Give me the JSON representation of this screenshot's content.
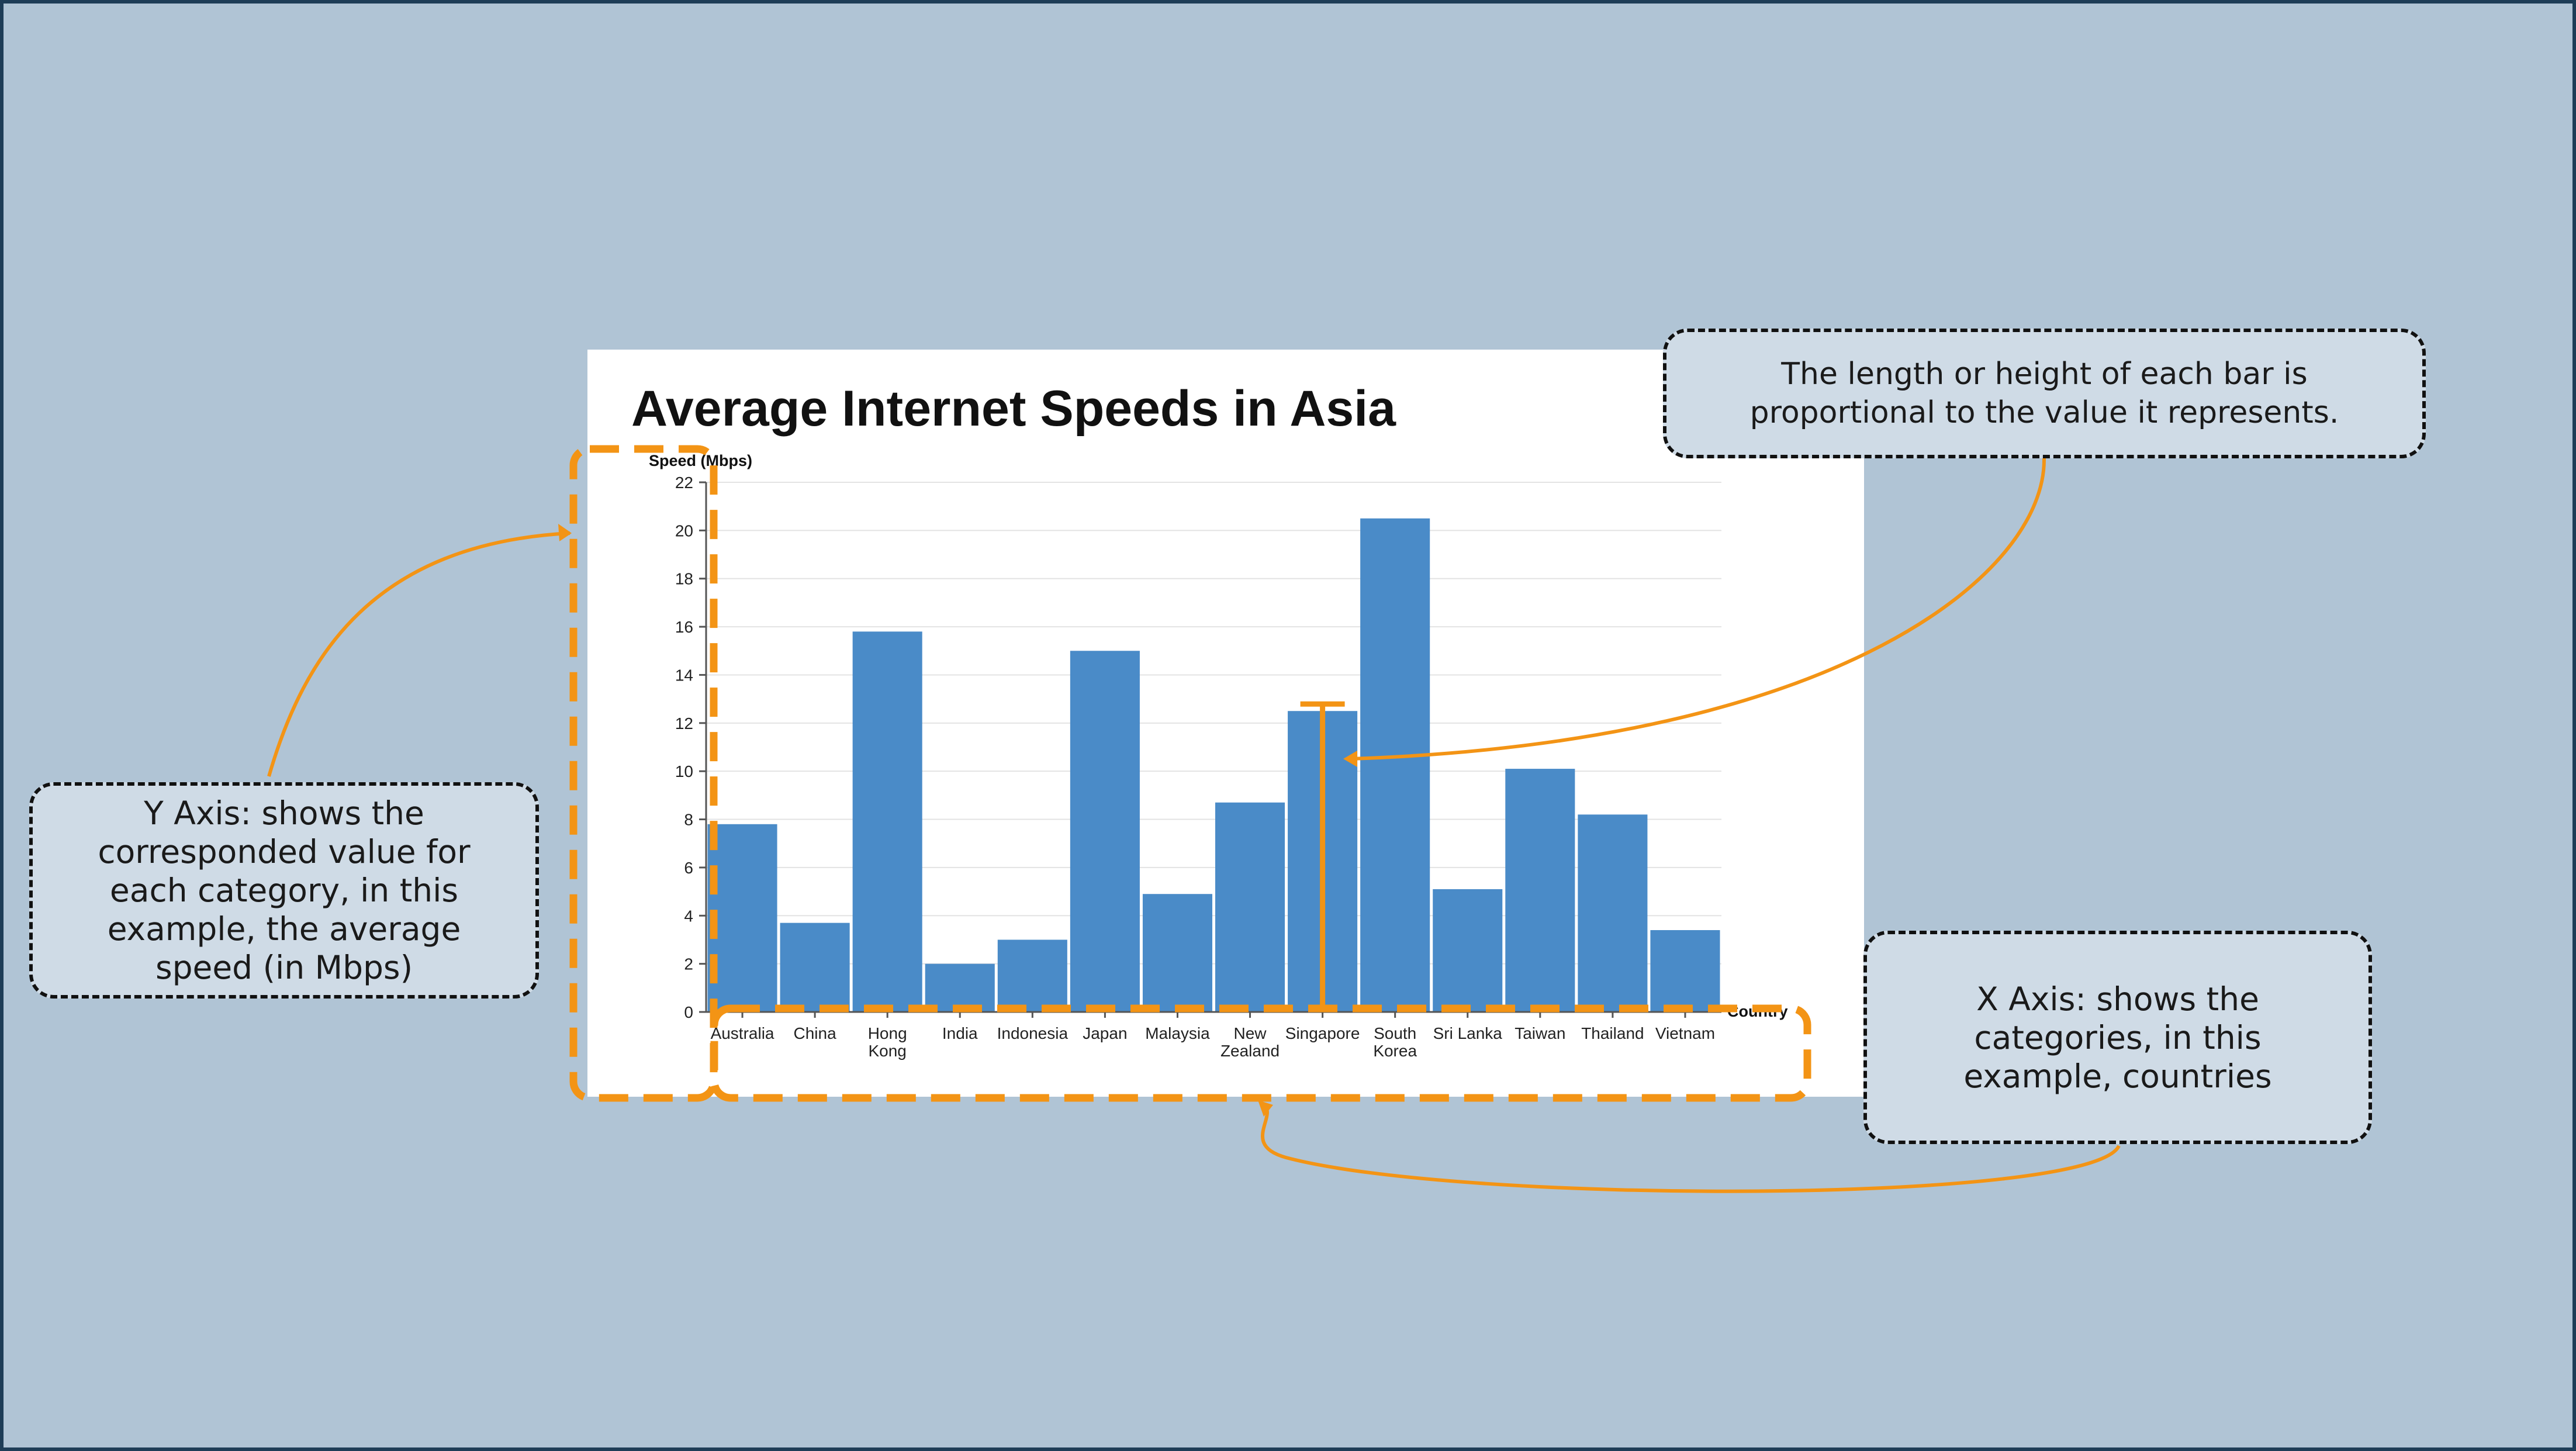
{
  "chart_data": {
    "type": "bar",
    "title": "Average Internet Speeds in Asia",
    "xlabel": "Country",
    "ylabel": "Speed (Mbps)",
    "categories": [
      "Australia",
      "China",
      "Hong Kong",
      "India",
      "Indonesia",
      "Japan",
      "Malaysia",
      "New Zealand",
      "Singapore",
      "South Korea",
      "Sri Lanka",
      "Taiwan",
      "Thailand",
      "Vietnam"
    ],
    "category_lines": [
      [
        "Australia"
      ],
      [
        "China"
      ],
      [
        "Hong",
        "Kong"
      ],
      [
        "India"
      ],
      [
        "Indonesia"
      ],
      [
        "Japan"
      ],
      [
        "Malaysia"
      ],
      [
        "New",
        "Zealand"
      ],
      [
        "Singapore"
      ],
      [
        "South",
        "Korea"
      ],
      [
        "Sri Lanka"
      ],
      [
        "Taiwan"
      ],
      [
        "Thailand"
      ],
      [
        "Vietnam"
      ]
    ],
    "values": [
      7.8,
      3.7,
      15.8,
      2.0,
      3.0,
      15.0,
      4.9,
      8.7,
      12.5,
      20.5,
      5.1,
      10.1,
      8.2,
      3.4
    ],
    "ylim": [
      0,
      22
    ],
    "yticks": [
      0,
      2,
      4,
      6,
      8,
      10,
      12,
      14,
      16,
      18,
      20,
      22
    ],
    "grid": true,
    "bar_color": "#4a8bc8"
  },
  "annotations": {
    "accent_color": "#f39415",
    "highlighted_category": "Singapore",
    "bar_callout": "The length or height of each bar is proportional to the value it represents.",
    "y_axis_callout": "Y Axis: shows the corresponded value for each category, in this example, the average speed (in Mbps)",
    "x_axis_callout": "X Axis: shows the categories, in this example, countries"
  }
}
